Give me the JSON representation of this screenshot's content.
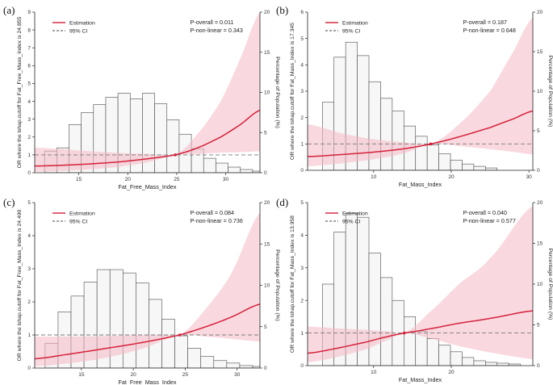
{
  "colors": {
    "curve": "#d6203a",
    "ci_fill": "#f4b9c4",
    "bar_fill": "#f7f7f7",
    "bar_stroke": "#4a4a4a",
    "ref_line": "#7a7a7a",
    "axis": "#222222"
  },
  "chart_data": [
    {
      "type": "bar+line",
      "panel_label": "(a)",
      "title": "",
      "xlabel": "Fat_Free_Mass_Index",
      "ylabel": "OR where the lshap.cutoff for Fat_Free_Mass_Index is 24.855",
      "y2label": "Percentage of Population (%)",
      "xlim": [
        10.5,
        33.5
      ],
      "ylim": [
        0,
        9
      ],
      "y2lim": [
        0,
        20
      ],
      "xticks": [
        15,
        20,
        25,
        30
      ],
      "yticks": [
        0,
        1,
        2,
        3,
        4,
        5,
        6,
        7,
        8,
        9
      ],
      "y2ticks": [
        0,
        5,
        10,
        15,
        20
      ],
      "legend": {
        "estimation": "Estimation",
        "ci": "95% CI"
      },
      "p_overall": "P-overall = 0.011",
      "p_nonlinear": "P-non-linear = 0.343",
      "cutoff": 24.855,
      "histogram": {
        "bin_start": 11.5,
        "bin_width": 1.25,
        "values": [
          2.7,
          3.1,
          6.0,
          7.5,
          8.5,
          9.4,
          9.9,
          9.2,
          9.9,
          8.6,
          6.6,
          4.8,
          3.0,
          1.8,
          1.2,
          0.7,
          0.4,
          0.2
        ]
      },
      "estimate": {
        "x": [
          11.0,
          15.0,
          19.0,
          22.0,
          24.855,
          27.0,
          29.5,
          31.5,
          33.5
        ],
        "y": [
          0.38,
          0.46,
          0.6,
          0.78,
          1.0,
          1.37,
          2.0,
          2.7,
          3.5
        ]
      },
      "ci_lower": {
        "x": [
          11.0,
          15.0,
          19.0,
          22.0,
          24.855,
          27.0,
          29.5,
          31.5,
          33.5
        ],
        "y": [
          0.06,
          0.15,
          0.32,
          0.58,
          1.0,
          1.05,
          1.12,
          1.15,
          1.2
        ]
      },
      "ci_upper": {
        "x": [
          11.0,
          15.0,
          19.0,
          22.0,
          24.855,
          27.0,
          29.5,
          31.5,
          33.5
        ],
        "y": [
          1.4,
          1.25,
          1.12,
          1.05,
          1.0,
          2.1,
          4.0,
          6.4,
          9.0
        ]
      }
    },
    {
      "type": "bar+line",
      "panel_label": "(b)",
      "title": "",
      "xlabel": "Fat_Mass_Index",
      "ylabel": "OR where the lshap.cutoff for Fat_Mass_Index is 17.345",
      "y2label": "Percentage of Population (%)",
      "xlim": [
        1.5,
        30.5
      ],
      "ylim": [
        0,
        6
      ],
      "y2lim": [
        0,
        20
      ],
      "xticks": [
        10,
        20,
        30
      ],
      "yticks": [
        0,
        1,
        2,
        3,
        4,
        5,
        6
      ],
      "y2ticks": [
        0,
        5,
        10,
        15,
        20
      ],
      "legend": {
        "estimation": "Estimation",
        "ci": "95% CI"
      },
      "p_overall": "P-overall = 0.187",
      "p_nonlinear": "P-non-linear = 0.648",
      "cutoff": 17.345,
      "histogram": {
        "bin_start": 3.4,
        "bin_width": 1.5,
        "values": [
          8.6,
          14.3,
          16.2,
          14.5,
          11.2,
          9.1,
          7.5,
          5.6,
          4.3,
          3.2,
          2.1,
          1.3,
          0.8,
          0.5,
          0.3
        ]
      },
      "estimate": {
        "x": [
          1.5,
          6.0,
          10.0,
          14.0,
          17.345,
          21.0,
          25.0,
          28.0,
          30.5
        ],
        "y": [
          0.52,
          0.6,
          0.69,
          0.82,
          1.0,
          1.27,
          1.62,
          1.95,
          2.25
        ]
      },
      "ci_lower": {
        "x": [
          1.5,
          6.0,
          10.0,
          14.0,
          17.345,
          21.0,
          25.0,
          28.0,
          30.5
        ],
        "y": [
          0.15,
          0.27,
          0.42,
          0.65,
          1.0,
          0.92,
          0.8,
          0.7,
          0.6
        ]
      },
      "ci_upper": {
        "x": [
          1.5,
          6.0,
          10.0,
          14.0,
          17.345,
          21.0,
          25.0,
          28.0,
          30.5
        ],
        "y": [
          1.75,
          1.4,
          1.18,
          1.06,
          1.0,
          1.75,
          3.0,
          4.5,
          5.8
        ]
      }
    },
    {
      "type": "bar+line",
      "panel_label": "(c)",
      "title": "",
      "xlabel": "Fat_Free_Mass_Index",
      "ylabel": "OR where the lshap.cutoff for Fat_Free_Mass_Index is 24.490",
      "y2label": "Percentage of Population (%)",
      "xlim": [
        10.5,
        32.2
      ],
      "ylim": [
        0,
        5
      ],
      "y2lim": [
        0,
        20
      ],
      "xticks": [
        15,
        20,
        25,
        30
      ],
      "yticks": [
        0,
        1,
        2,
        3,
        4,
        5
      ],
      "y2ticks": [
        0,
        5,
        10,
        15,
        20
      ],
      "legend": {
        "estimation": "Estimation",
        "ci": "95% CI"
      },
      "p_overall": "P-overall = 0.084",
      "p_nonlinear": "P-non-linear = 0.736",
      "cutoff": 24.49,
      "histogram": {
        "bin_start": 11.5,
        "bin_width": 1.25,
        "values": [
          3.0,
          6.8,
          8.7,
          10.4,
          11.9,
          11.9,
          11.5,
          10.3,
          8.3,
          5.9,
          3.9,
          2.4,
          1.4,
          0.9,
          0.6,
          0.3,
          0.2
        ]
      },
      "estimate": {
        "x": [
          10.5,
          14.0,
          17.5,
          21.0,
          24.49,
          27.0,
          29.5,
          32.2
        ],
        "y": [
          0.28,
          0.43,
          0.6,
          0.78,
          1.0,
          1.25,
          1.55,
          1.93
        ]
      },
      "ci_lower": {
        "x": [
          10.5,
          14.0,
          17.5,
          21.0,
          24.49,
          27.0,
          29.5,
          32.2
        ],
        "y": [
          0.05,
          0.15,
          0.32,
          0.6,
          1.0,
          0.95,
          0.88,
          0.8
        ]
      },
      "ci_upper": {
        "x": [
          10.5,
          14.0,
          17.5,
          21.0,
          24.49,
          27.0,
          29.5,
          32.2
        ],
        "y": [
          0.95,
          0.95,
          0.97,
          1.0,
          1.0,
          1.8,
          2.9,
          4.7
        ]
      }
    },
    {
      "type": "bar+line",
      "panel_label": "(d)",
      "title": "",
      "xlabel": "Fat_Mass_Index",
      "ylabel": "OR where the lshap.cutoff for Fat_Mass_Index is 13.958",
      "y2label": "Percentage of Population (%)",
      "xlim": [
        1.5,
        30.5
      ],
      "ylim": [
        0,
        5
      ],
      "y2lim": [
        0,
        20
      ],
      "xticks": [
        10,
        20
      ],
      "yticks": [
        0,
        1,
        2,
        3,
        4,
        5
      ],
      "y2ticks": [
        0,
        5,
        10,
        15,
        20
      ],
      "legend": {
        "estimation": "Estimation",
        "ci": "95% CI"
      },
      "p_overall": "P-overall = 0.040",
      "p_nonlinear": "P-non-linear = 0.577",
      "cutoff": 13.958,
      "histogram": {
        "bin_start": 3.4,
        "bin_width": 1.5,
        "values": [
          10.0,
          16.4,
          18.7,
          18.2,
          13.8,
          10.8,
          8.0,
          6.0,
          4.2,
          3.3,
          2.5,
          1.7,
          1.0,
          0.6,
          0.4,
          0.3,
          0.2
        ]
      },
      "estimate": {
        "x": [
          1.5,
          5.0,
          9.0,
          12.0,
          13.958,
          17.0,
          21.0,
          25.0,
          30.5
        ],
        "y": [
          0.38,
          0.52,
          0.72,
          0.9,
          1.0,
          1.12,
          1.3,
          1.45,
          1.68
        ]
      },
      "ci_lower": {
        "x": [
          1.5,
          5.0,
          9.0,
          12.0,
          13.958,
          17.0,
          21.0,
          25.0,
          30.5
        ],
        "y": [
          0.1,
          0.25,
          0.5,
          0.8,
          1.0,
          0.85,
          0.6,
          0.4,
          0.2
        ]
      },
      "ci_upper": {
        "x": [
          1.5,
          5.0,
          9.0,
          12.0,
          13.958,
          17.0,
          21.0,
          25.0,
          30.5
        ],
        "y": [
          1.2,
          1.15,
          1.1,
          1.05,
          1.0,
          1.6,
          2.5,
          3.3,
          4.9
        ]
      }
    }
  ]
}
